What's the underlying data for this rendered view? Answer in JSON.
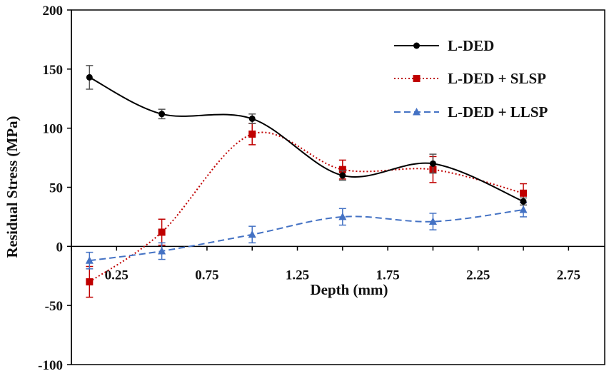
{
  "chart_data": {
    "type": "line",
    "xlabel": "Depth (mm)",
    "ylabel": "Residual Stress (MPa)",
    "xlim": [
      0,
      2.95
    ],
    "ylim": [
      -100,
      200
    ],
    "x_ticks": [
      "0.25",
      "0.75",
      "1.25",
      "1.75",
      "2.25",
      "2.75"
    ],
    "x_tick_values": [
      0.25,
      0.75,
      1.25,
      1.75,
      2.25,
      2.75
    ],
    "y_ticks": [
      "-100",
      "-50",
      "0",
      "50",
      "100",
      "150",
      "200"
    ],
    "y_tick_values": [
      -100,
      -50,
      0,
      50,
      100,
      150,
      200
    ],
    "grid": false,
    "legend_position": "top-right",
    "series": [
      {
        "name": "L-DED",
        "color": "#000000",
        "marker": "circle",
        "line_style": "solid",
        "x": [
          0.1,
          0.5,
          1.0,
          1.5,
          2.0,
          2.5
        ],
        "y": [
          143,
          112,
          108,
          60,
          70,
          38
        ],
        "error": [
          10,
          4,
          4,
          4,
          8,
          3
        ]
      },
      {
        "name": "L-DED + SLSP",
        "color": "#c00000",
        "marker": "square",
        "line_style": "dotted",
        "x": [
          0.1,
          0.5,
          1.0,
          1.5,
          2.0,
          2.5
        ],
        "y": [
          -30,
          12,
          95,
          65,
          65,
          45
        ],
        "error": [
          13,
          11,
          9,
          8,
          11,
          8
        ]
      },
      {
        "name": "L-DED + LLSP",
        "color": "#4472c4",
        "marker": "triangle",
        "line_style": "dashed",
        "x": [
          0.1,
          0.5,
          1.0,
          1.5,
          2.0,
          2.5
        ],
        "y": [
          -12,
          -4,
          10,
          25,
          21,
          31
        ],
        "error": [
          7,
          7,
          7,
          7,
          7,
          6
        ]
      }
    ]
  }
}
